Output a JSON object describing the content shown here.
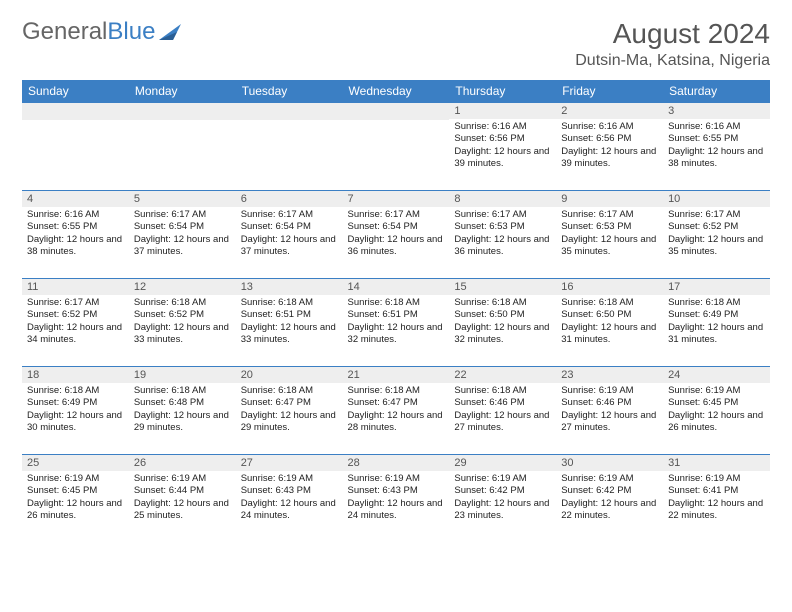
{
  "logo": {
    "text1": "General",
    "text2": "Blue"
  },
  "title": "August 2024",
  "location": "Dutsin-Ma, Katsina, Nigeria",
  "colors": {
    "header_bg": "#3b7fc4",
    "header_text": "#ffffff",
    "daynum_bg": "#eeeeee",
    "daynum_text": "#555555",
    "border": "#3b7fc4",
    "logo_gray": "#666666",
    "logo_blue": "#3b7fc4"
  },
  "dayNames": [
    "Sunday",
    "Monday",
    "Tuesday",
    "Wednesday",
    "Thursday",
    "Friday",
    "Saturday"
  ],
  "weeks": [
    [
      null,
      null,
      null,
      null,
      {
        "n": "1",
        "sr": "6:16 AM",
        "ss": "6:56 PM",
        "dl": "12 hours and 39 minutes."
      },
      {
        "n": "2",
        "sr": "6:16 AM",
        "ss": "6:56 PM",
        "dl": "12 hours and 39 minutes."
      },
      {
        "n": "3",
        "sr": "6:16 AM",
        "ss": "6:55 PM",
        "dl": "12 hours and 38 minutes."
      }
    ],
    [
      {
        "n": "4",
        "sr": "6:16 AM",
        "ss": "6:55 PM",
        "dl": "12 hours and 38 minutes."
      },
      {
        "n": "5",
        "sr": "6:17 AM",
        "ss": "6:54 PM",
        "dl": "12 hours and 37 minutes."
      },
      {
        "n": "6",
        "sr": "6:17 AM",
        "ss": "6:54 PM",
        "dl": "12 hours and 37 minutes."
      },
      {
        "n": "7",
        "sr": "6:17 AM",
        "ss": "6:54 PM",
        "dl": "12 hours and 36 minutes."
      },
      {
        "n": "8",
        "sr": "6:17 AM",
        "ss": "6:53 PM",
        "dl": "12 hours and 36 minutes."
      },
      {
        "n": "9",
        "sr": "6:17 AM",
        "ss": "6:53 PM",
        "dl": "12 hours and 35 minutes."
      },
      {
        "n": "10",
        "sr": "6:17 AM",
        "ss": "6:52 PM",
        "dl": "12 hours and 35 minutes."
      }
    ],
    [
      {
        "n": "11",
        "sr": "6:17 AM",
        "ss": "6:52 PM",
        "dl": "12 hours and 34 minutes."
      },
      {
        "n": "12",
        "sr": "6:18 AM",
        "ss": "6:52 PM",
        "dl": "12 hours and 33 minutes."
      },
      {
        "n": "13",
        "sr": "6:18 AM",
        "ss": "6:51 PM",
        "dl": "12 hours and 33 minutes."
      },
      {
        "n": "14",
        "sr": "6:18 AM",
        "ss": "6:51 PM",
        "dl": "12 hours and 32 minutes."
      },
      {
        "n": "15",
        "sr": "6:18 AM",
        "ss": "6:50 PM",
        "dl": "12 hours and 32 minutes."
      },
      {
        "n": "16",
        "sr": "6:18 AM",
        "ss": "6:50 PM",
        "dl": "12 hours and 31 minutes."
      },
      {
        "n": "17",
        "sr": "6:18 AM",
        "ss": "6:49 PM",
        "dl": "12 hours and 31 minutes."
      }
    ],
    [
      {
        "n": "18",
        "sr": "6:18 AM",
        "ss": "6:49 PM",
        "dl": "12 hours and 30 minutes."
      },
      {
        "n": "19",
        "sr": "6:18 AM",
        "ss": "6:48 PM",
        "dl": "12 hours and 29 minutes."
      },
      {
        "n": "20",
        "sr": "6:18 AM",
        "ss": "6:47 PM",
        "dl": "12 hours and 29 minutes."
      },
      {
        "n": "21",
        "sr": "6:18 AM",
        "ss": "6:47 PM",
        "dl": "12 hours and 28 minutes."
      },
      {
        "n": "22",
        "sr": "6:18 AM",
        "ss": "6:46 PM",
        "dl": "12 hours and 27 minutes."
      },
      {
        "n": "23",
        "sr": "6:19 AM",
        "ss": "6:46 PM",
        "dl": "12 hours and 27 minutes."
      },
      {
        "n": "24",
        "sr": "6:19 AM",
        "ss": "6:45 PM",
        "dl": "12 hours and 26 minutes."
      }
    ],
    [
      {
        "n": "25",
        "sr": "6:19 AM",
        "ss": "6:45 PM",
        "dl": "12 hours and 26 minutes."
      },
      {
        "n": "26",
        "sr": "6:19 AM",
        "ss": "6:44 PM",
        "dl": "12 hours and 25 minutes."
      },
      {
        "n": "27",
        "sr": "6:19 AM",
        "ss": "6:43 PM",
        "dl": "12 hours and 24 minutes."
      },
      {
        "n": "28",
        "sr": "6:19 AM",
        "ss": "6:43 PM",
        "dl": "12 hours and 24 minutes."
      },
      {
        "n": "29",
        "sr": "6:19 AM",
        "ss": "6:42 PM",
        "dl": "12 hours and 23 minutes."
      },
      {
        "n": "30",
        "sr": "6:19 AM",
        "ss": "6:42 PM",
        "dl": "12 hours and 22 minutes."
      },
      {
        "n": "31",
        "sr": "6:19 AM",
        "ss": "6:41 PM",
        "dl": "12 hours and 22 minutes."
      }
    ]
  ],
  "labels": {
    "sunrise": "Sunrise: ",
    "sunset": "Sunset: ",
    "daylight": "Daylight: "
  }
}
